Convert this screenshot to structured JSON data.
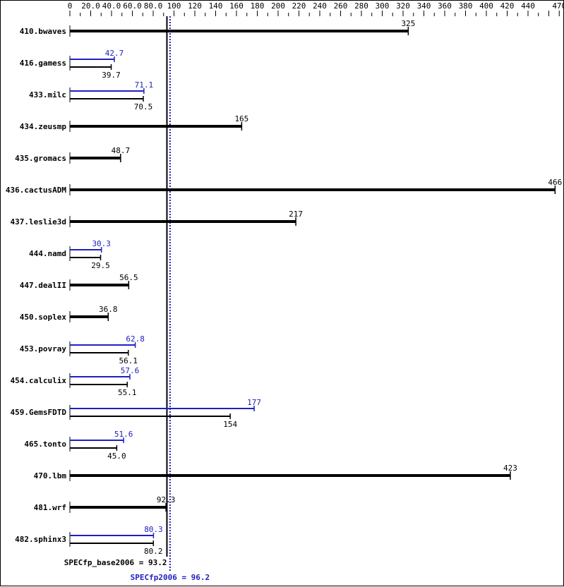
{
  "chart_data": {
    "type": "bar",
    "orientation": "horizontal",
    "xlim": [
      0,
      470
    ],
    "tick_labels": [
      "0",
      "20.0",
      "40.0",
      "60.0",
      "80.0",
      "100",
      "120",
      "140",
      "160",
      "180",
      "200",
      "220",
      "240",
      "260",
      "280",
      "300",
      "320",
      "340",
      "360",
      "380",
      "400",
      "420",
      "440",
      "470"
    ],
    "tick_values": [
      0,
      20,
      40,
      60,
      80,
      100,
      120,
      140,
      160,
      180,
      200,
      220,
      240,
      260,
      280,
      300,
      320,
      340,
      360,
      380,
      400,
      420,
      440,
      470
    ],
    "categories": [
      "410.bwaves",
      "416.gamess",
      "433.milc",
      "434.zeusmp",
      "435.gromacs",
      "436.cactusADM",
      "437.leslie3d",
      "444.namd",
      "447.dealII",
      "450.soplex",
      "453.povray",
      "454.calculix",
      "459.GemsFDTD",
      "465.tonto",
      "470.lbm",
      "481.wrf",
      "482.sphinx3"
    ],
    "series": [
      {
        "name": "SPECfp_base2006",
        "values": [
          325,
          39.7,
          70.5,
          165,
          48.7,
          466,
          217,
          29.5,
          56.5,
          36.8,
          56.1,
          55.1,
          154,
          45.0,
          423,
          92.3,
          80.2
        ],
        "labels": [
          "325",
          "39.7",
          "70.5",
          "165",
          "48.7",
          "466",
          "217",
          "29.5",
          "56.5",
          "36.8",
          "56.1",
          "55.1",
          "154",
          "45.0",
          "423",
          "92.3",
          "80.2"
        ]
      },
      {
        "name": "SPECfp2006",
        "values": [
          null,
          42.7,
          71.1,
          null,
          null,
          null,
          null,
          30.3,
          null,
          null,
          62.8,
          57.6,
          177,
          51.6,
          null,
          null,
          80.3
        ],
        "labels": [
          null,
          "42.7",
          "71.1",
          null,
          null,
          null,
          null,
          "30.3",
          null,
          null,
          "62.8",
          "57.6",
          "177",
          "51.6",
          null,
          null,
          "80.3"
        ]
      }
    ],
    "reference_lines": [
      {
        "label": "SPECfp_base2006 = 93.2",
        "value": 93.2,
        "color": "#000000",
        "style": "solid"
      },
      {
        "label": "SPECfp2006 = 96.2",
        "value": 96.2,
        "color": "#2020c0",
        "style": "dotted"
      }
    ],
    "colors": {
      "base": "#000000",
      "peak": "#2020c0"
    }
  }
}
